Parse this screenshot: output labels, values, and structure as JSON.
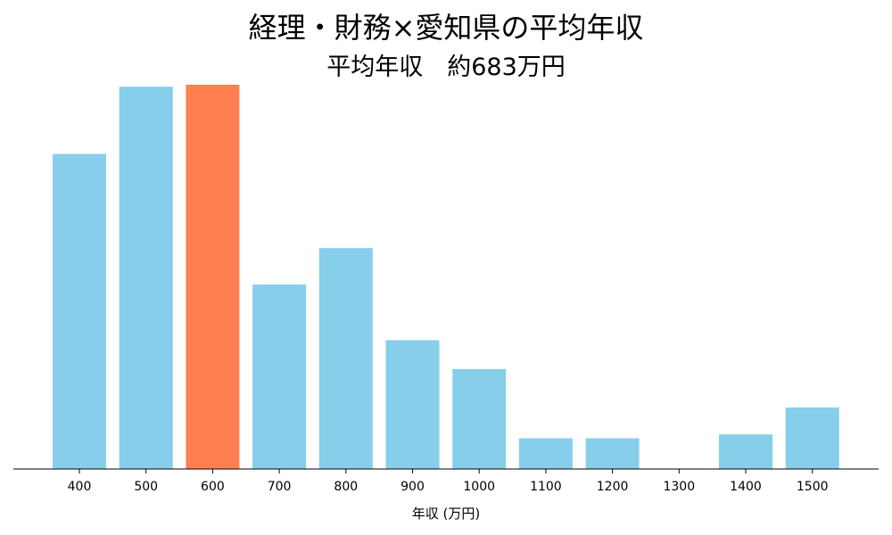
{
  "chart_data": {
    "type": "bar",
    "title": "経理・財務×愛知県の平均年収",
    "subtitle": "平均年収　約683万円",
    "xlabel": "年収 (万円)",
    "ylabel": "",
    "categories": [
      "400",
      "500",
      "600",
      "700",
      "800",
      "900",
      "1000",
      "1100",
      "1200",
      "1300",
      "1400",
      "1500"
    ],
    "values": [
      82,
      99.5,
      100,
      48,
      57.5,
      33.5,
      26,
      8,
      8,
      0,
      9,
      16
    ],
    "highlight_category": "600",
    "ylim": [
      0,
      100
    ],
    "grid": false,
    "legend": "none",
    "colors": {
      "bar": "#87CEEB",
      "highlight": "#FF7F50",
      "axis": "#000000"
    }
  }
}
